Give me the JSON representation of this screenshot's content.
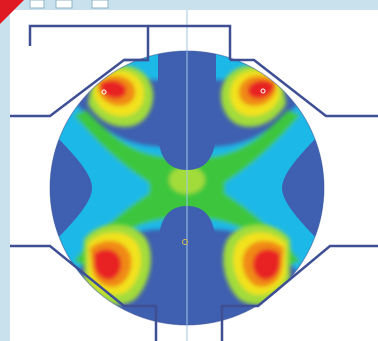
{
  "window": {
    "frame_color": "#c9e1ec",
    "corner_accent_color": "#e01a22",
    "toolbar_buttons": [
      "empty",
      "empty",
      "empty"
    ]
  },
  "figure": {
    "type": "contour field plot",
    "colormap": [
      "#3f5fb0",
      "#1fb8e8",
      "#3cc63c",
      "#a2dc3a",
      "#f2e21a",
      "#f08a14",
      "#e82121"
    ],
    "labels": [],
    "outline_color": "#3e4f94",
    "centerline_color": "#9fc8e6"
  }
}
